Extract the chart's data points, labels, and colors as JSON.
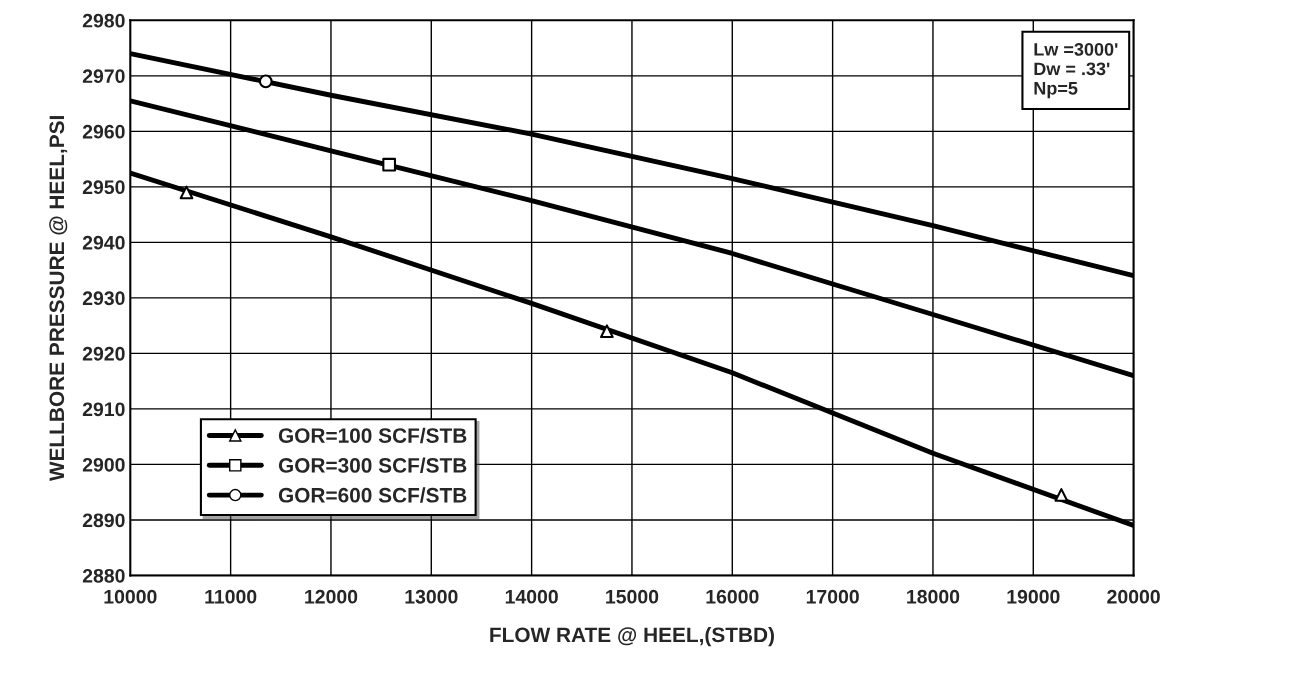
{
  "chart_data": {
    "type": "line",
    "xlabel": "FLOW RATE @ HEEL,(STBD)",
    "ylabel": "WELLBORE PRESSURE @ HEEL,PSI",
    "xlim": [
      10000,
      20000
    ],
    "xticks": [
      10000,
      11000,
      12000,
      13000,
      14000,
      15000,
      16000,
      17000,
      18000,
      19000,
      20000
    ],
    "ylim": [
      2880,
      2980
    ],
    "yticks": [
      2880,
      2890,
      2900,
      2910,
      2920,
      2930,
      2940,
      2950,
      2960,
      2970,
      2980
    ],
    "grid": true,
    "legend": "bottom left",
    "line_style": "solid",
    "annotations": [
      "Lw =3000'\nDw = .33'\nNp=5"
    ],
    "series": [
      {
        "name": "GOR=100 SCF/STB",
        "color": "#000000",
        "x": [
          10000,
          12000,
          14000,
          16000,
          18000,
          20000
        ],
        "values": [
          2952.5,
          2941,
          2929,
          2916.5,
          2902,
          2889
        ]
      },
      {
        "type": "scatter",
        "marker": "triangle",
        "color": "#000000",
        "x": [
          10560,
          14750,
          19280
        ],
        "values": [
          2949,
          2924,
          2894.5
        ]
      },
      {
        "name": "GOR=300 SCF/STB",
        "color": "#000000",
        "x": [
          10000,
          12000,
          14000,
          16000,
          18000,
          20000
        ],
        "values": [
          2965.5,
          2956.5,
          2947.5,
          2938,
          2927,
          2916
        ]
      },
      {
        "type": "scatter",
        "marker": "square",
        "color": "#000000",
        "x": [
          12580
        ],
        "values": [
          2954
        ]
      },
      {
        "name": "GOR=600 SCF/STB",
        "color": "#000000",
        "x": [
          10000,
          12000,
          14000,
          16000,
          18000,
          20000
        ],
        "values": [
          2974,
          2966.5,
          2959.5,
          2951.5,
          2943,
          2934
        ]
      },
      {
        "type": "scatter",
        "marker": "circle",
        "color": "#000000",
        "x": [
          11350
        ],
        "values": [
          2969
        ]
      }
    ]
  }
}
